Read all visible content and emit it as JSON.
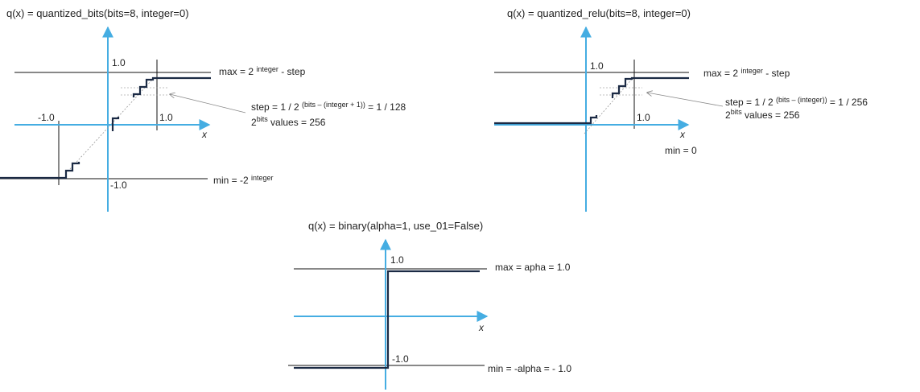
{
  "colors": {
    "axis": "#45ade2",
    "step": "#1b2a44",
    "line": "#111111",
    "guide": "#999999"
  },
  "panel1": {
    "title": "q(x) = quantized_bits(bits=8, integer=0)",
    "y_top": "1.0",
    "x_right": "1.0",
    "x_left": "-1.0",
    "y_bottom": "-1.0",
    "x_axis": "x",
    "max_pre": "max = 2 ",
    "max_sup": "integer",
    "max_post": " - step",
    "step_pre": "step = 1 / 2 ",
    "step_sup": "(bits – (integer + 1))",
    "step_post": " = 1 / 128",
    "values_pre": "2",
    "values_sup": "bits",
    "values_post": " values  = 256",
    "min_pre": "min = -2 ",
    "min_sup": "integer"
  },
  "panel2": {
    "title": "q(x) = quantized_relu(bits=8, integer=0)",
    "y_top": "1.0",
    "x_right": "1.0",
    "x_axis": "x",
    "min_label": "min = 0",
    "max_pre": "max = 2 ",
    "max_sup": "integer",
    "max_post": " - step",
    "step_pre": "step = 1 / 2 ",
    "step_sup": "(bits – (integer))",
    "step_post": " = 1 / 256",
    "values_pre": "2",
    "values_sup": "bits",
    "values_post": " values  = 256"
  },
  "panel3": {
    "title": "q(x) = binary(alpha=1, use_01=False)",
    "y_top": "1.0",
    "y_bottom": "-1.0",
    "x_axis": "x",
    "max_label": "max = apha  = 1.0",
    "min_label": "min = -alpha  = - 1.0"
  }
}
